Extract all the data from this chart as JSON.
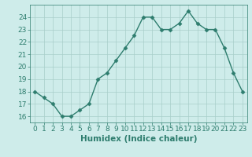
{
  "xlabel": "Humidex (Indice chaleur)",
  "x": [
    0,
    1,
    2,
    3,
    4,
    5,
    6,
    7,
    8,
    9,
    10,
    11,
    12,
    13,
    14,
    15,
    16,
    17,
    18,
    19,
    20,
    21,
    22,
    23
  ],
  "y": [
    18,
    17.5,
    17,
    16,
    16,
    16.5,
    17,
    19,
    19.5,
    20.5,
    21.5,
    22.5,
    24,
    24,
    23,
    23,
    23.5,
    24.5,
    23.5,
    23,
    23,
    21.5,
    19.5,
    18
  ],
  "line_color": "#2e7d6e",
  "marker": "D",
  "marker_size": 2.5,
  "line_width": 1.0,
  "bg_color": "#ceecea",
  "grid_color": "#a8ceca",
  "tick_color": "#2e7d6e",
  "label_color": "#2e7d6e",
  "ylim": [
    15.5,
    25.0
  ],
  "xlim": [
    -0.5,
    23.5
  ],
  "yticks": [
    16,
    17,
    18,
    19,
    20,
    21,
    22,
    23,
    24
  ],
  "xticks": [
    0,
    1,
    2,
    3,
    4,
    5,
    6,
    7,
    8,
    9,
    10,
    11,
    12,
    13,
    14,
    15,
    16,
    17,
    18,
    19,
    20,
    21,
    22,
    23
  ],
  "xlabel_fontsize": 7.5,
  "tick_fontsize": 6.5
}
